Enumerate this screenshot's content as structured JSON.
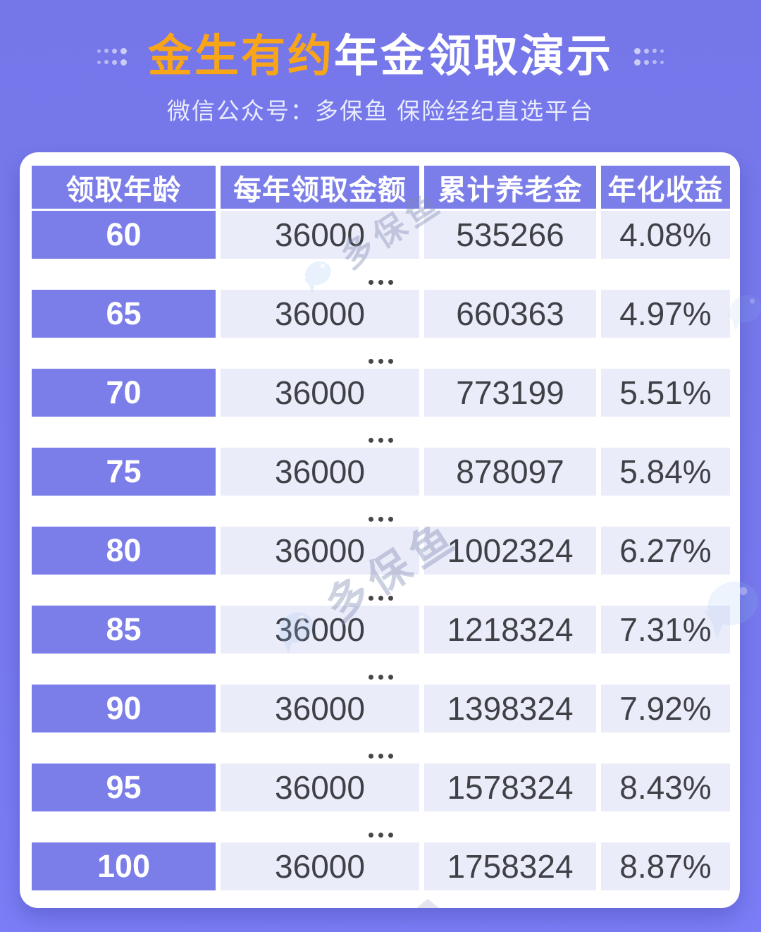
{
  "theme": {
    "background_purple": "#7678ea",
    "accent_orange": "#f9a51a",
    "table_purple": "#7b7ee8",
    "data_cell_lavender": "#ebecf9",
    "data_text": "#3f4147",
    "card_white": "#ffffff",
    "watermark_blue": "#bcd6f2"
  },
  "header": {
    "title_highlight": "金生有约",
    "title_rest": "年金领取演示",
    "subtitle": "微信公众号：多保鱼 保险经纪直选平台"
  },
  "table": {
    "columns": [
      "领取年龄",
      "每年领取金额",
      "累计养老金",
      "年化收益"
    ],
    "rows": [
      {
        "age": "60",
        "annual_amount": "36000",
        "cumulative_pension": "535266",
        "annualized_yield": "4.08%"
      },
      {
        "age": "65",
        "annual_amount": "36000",
        "cumulative_pension": "660363",
        "annualized_yield": "4.97%"
      },
      {
        "age": "70",
        "annual_amount": "36000",
        "cumulative_pension": "773199",
        "annualized_yield": "5.51%"
      },
      {
        "age": "75",
        "annual_amount": "36000",
        "cumulative_pension": "878097",
        "annualized_yield": "5.84%"
      },
      {
        "age": "80",
        "annual_amount": "36000",
        "cumulative_pension": "1002324",
        "annualized_yield": "6.27%"
      },
      {
        "age": "85",
        "annual_amount": "36000",
        "cumulative_pension": "1218324",
        "annualized_yield": "7.31%"
      },
      {
        "age": "90",
        "annual_amount": "36000",
        "cumulative_pension": "1398324",
        "annualized_yield": "7.92%"
      },
      {
        "age": "95",
        "annual_amount": "36000",
        "cumulative_pension": "1578324",
        "annualized_yield": "8.43%"
      },
      {
        "age": "100",
        "annual_amount": "36000",
        "cumulative_pension": "1758324",
        "annualized_yield": "8.87%"
      }
    ]
  },
  "watermark": {
    "text": "多保鱼"
  },
  "chart_data": {
    "type": "table",
    "title": "金生有约年金领取演示",
    "subtitle": "微信公众号：多保鱼 保险经纪直选平台",
    "columns": [
      "领取年龄",
      "每年领取金额",
      "累计养老金",
      "年化收益"
    ],
    "rows": [
      [
        60,
        36000,
        535266,
        "4.08%"
      ],
      [
        65,
        36000,
        660363,
        "4.97%"
      ],
      [
        70,
        36000,
        773199,
        "5.51%"
      ],
      [
        75,
        36000,
        878097,
        "5.84%"
      ],
      [
        80,
        36000,
        1002324,
        "6.27%"
      ],
      [
        85,
        36000,
        1218324,
        "7.31%"
      ],
      [
        90,
        36000,
        1398324,
        "7.92%"
      ],
      [
        95,
        36000,
        1578324,
        "8.43%"
      ],
      [
        100,
        36000,
        1758324,
        "8.87%"
      ]
    ]
  }
}
